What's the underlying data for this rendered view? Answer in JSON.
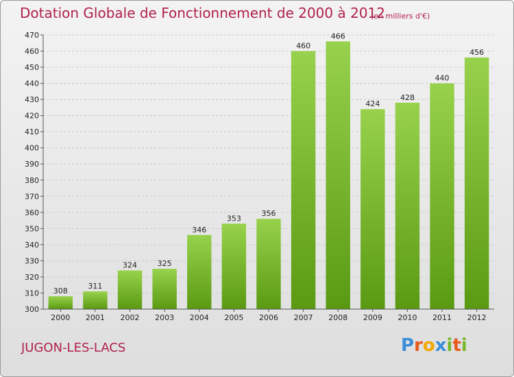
{
  "title": "Dotation Globale de Fonctionnement de 2000 à 2012",
  "unit": "(en milliers d'€)",
  "city": "JUGON-LES-LACS",
  "logo": {
    "letters": [
      {
        "ch": "P",
        "color": "#3a8fd8"
      },
      {
        "ch": "r",
        "color": "#e85a1e"
      },
      {
        "ch": "o",
        "color": "#f2a900"
      },
      {
        "ch": "x",
        "color": "#3a8fd8"
      },
      {
        "ch": "i",
        "color": "#77b82a"
      },
      {
        "ch": "t",
        "color": "#e85a1e"
      },
      {
        "ch": "i",
        "color": "#77b82a"
      }
    ]
  },
  "colors": {
    "title": "#b0204a",
    "bar_top": "#98d24d",
    "bar_bottom": "#5a9a12",
    "grid": "#c8c8c8"
  },
  "chart_data": {
    "type": "bar",
    "categories": [
      "2000",
      "2001",
      "2002",
      "2003",
      "2004",
      "2005",
      "2006",
      "2007",
      "2008",
      "2009",
      "2010",
      "2011",
      "2012"
    ],
    "values": [
      308,
      311,
      324,
      325,
      346,
      353,
      356,
      460,
      466,
      424,
      428,
      440,
      456
    ],
    "title": "Dotation Globale de Fonctionnement de 2000 à 2012",
    "ylim": [
      300,
      470
    ],
    "yticks": [
      300,
      310,
      320,
      330,
      340,
      350,
      360,
      370,
      380,
      390,
      400,
      410,
      420,
      430,
      440,
      450,
      460,
      470
    ],
    "grid": "dashed-horizontal"
  }
}
